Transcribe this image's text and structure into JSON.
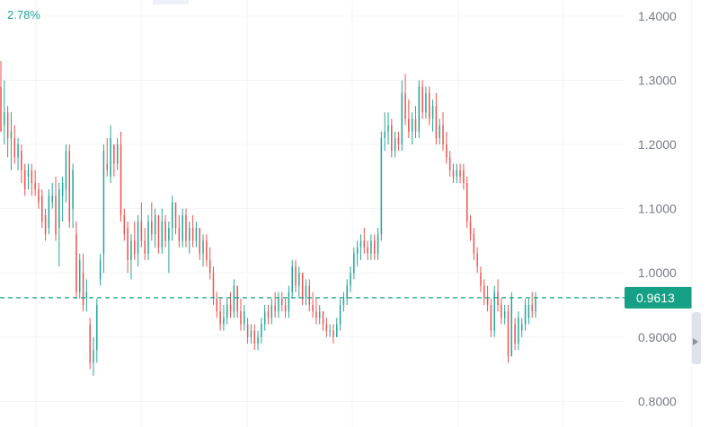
{
  "header": {
    "change_label": "2.78%"
  },
  "price_axis": {
    "ticks": [
      "1.4000",
      "1.3000",
      "1.2000",
      "1.1000",
      "1.0000",
      "0.9000",
      "0.8000"
    ]
  },
  "current_price": {
    "label": "0.9613",
    "value": 0.9613
  },
  "colors": {
    "up": "#26a69a",
    "down": "#ef5350",
    "tag_bg": "#16a085",
    "grid": "#f2f3f5",
    "axis_text": "#787b86"
  },
  "chart_data": {
    "type": "candlestick",
    "ylim": [
      0.76,
      1.425
    ],
    "yticks": [
      1.4,
      1.3,
      1.2,
      1.1,
      1.0,
      0.9,
      0.8
    ],
    "grid": true,
    "bars": [
      {
        "o": 1.29,
        "h": 1.33,
        "l": 1.22,
        "c": 1.22
      },
      {
        "o": 1.23,
        "h": 1.3,
        "l": 1.2,
        "c": 1.25
      },
      {
        "o": 1.25,
        "h": 1.26,
        "l": 1.18,
        "c": 1.21
      },
      {
        "o": 1.21,
        "h": 1.25,
        "l": 1.16,
        "c": 1.22
      },
      {
        "o": 1.21,
        "h": 1.23,
        "l": 1.17,
        "c": 1.18
      },
      {
        "o": 1.18,
        "h": 1.21,
        "l": 1.16,
        "c": 1.2
      },
      {
        "o": 1.19,
        "h": 1.2,
        "l": 1.14,
        "c": 1.16
      },
      {
        "o": 1.16,
        "h": 1.17,
        "l": 1.12,
        "c": 1.13
      },
      {
        "o": 1.15,
        "h": 1.17,
        "l": 1.13,
        "c": 1.16
      },
      {
        "o": 1.16,
        "h": 1.17,
        "l": 1.12,
        "c": 1.14
      },
      {
        "o": 1.14,
        "h": 1.16,
        "l": 1.12,
        "c": 1.13
      },
      {
        "o": 1.13,
        "h": 1.14,
        "l": 1.1,
        "c": 1.11
      },
      {
        "o": 1.12,
        "h": 1.13,
        "l": 1.07,
        "c": 1.08
      },
      {
        "o": 1.09,
        "h": 1.1,
        "l": 1.05,
        "c": 1.06
      },
      {
        "o": 1.07,
        "h": 1.13,
        "l": 1.06,
        "c": 1.12
      },
      {
        "o": 1.11,
        "h": 1.14,
        "l": 1.1,
        "c": 1.12
      },
      {
        "o": 1.12,
        "h": 1.15,
        "l": 1.05,
        "c": 1.06
      },
      {
        "o": 1.07,
        "h": 1.14,
        "l": 1.01,
        "c": 1.13
      },
      {
        "o": 1.12,
        "h": 1.15,
        "l": 1.08,
        "c": 1.14
      },
      {
        "o": 1.13,
        "h": 1.2,
        "l": 1.11,
        "c": 1.19
      },
      {
        "o": 1.19,
        "h": 1.2,
        "l": 1.07,
        "c": 1.08
      },
      {
        "o": 1.1,
        "h": 1.17,
        "l": 1.07,
        "c": 1.16
      },
      {
        "o": 1.06,
        "h": 1.08,
        "l": 0.96,
        "c": 0.97
      },
      {
        "o": 0.97,
        "h": 1.03,
        "l": 0.96,
        "c": 1.02
      },
      {
        "o": 1.0,
        "h": 1.03,
        "l": 0.94,
        "c": 0.95
      },
      {
        "o": 0.96,
        "h": 0.99,
        "l": 0.94,
        "c": 0.97
      },
      {
        "o": 0.92,
        "h": 0.93,
        "l": 0.85,
        "c": 0.86
      },
      {
        "o": 0.86,
        "h": 0.9,
        "l": 0.84,
        "c": 0.88
      },
      {
        "o": 0.88,
        "h": 0.96,
        "l": 0.86,
        "c": 0.95
      },
      {
        "o": 0.99,
        "h": 1.03,
        "l": 0.98,
        "c": 1.02
      },
      {
        "o": 1.03,
        "h": 1.2,
        "l": 1.0,
        "c": 1.19
      },
      {
        "o": 1.17,
        "h": 1.21,
        "l": 1.15,
        "c": 1.16
      },
      {
        "o": 1.15,
        "h": 1.23,
        "l": 1.14,
        "c": 1.21
      },
      {
        "o": 1.2,
        "h": 1.2,
        "l": 1.15,
        "c": 1.17
      },
      {
        "o": 1.17,
        "h": 1.21,
        "l": 1.16,
        "c": 1.2
      },
      {
        "o": 1.2,
        "h": 1.22,
        "l": 1.08,
        "c": 1.09
      },
      {
        "o": 1.09,
        "h": 1.1,
        "l": 1.05,
        "c": 1.06
      },
      {
        "o": 1.07,
        "h": 1.08,
        "l": 1.0,
        "c": 1.02
      },
      {
        "o": 1.02,
        "h": 1.06,
        "l": 0.99,
        "c": 1.05
      },
      {
        "o": 1.05,
        "h": 1.08,
        "l": 1.02,
        "c": 1.03
      },
      {
        "o": 1.03,
        "h": 1.09,
        "l": 1.01,
        "c": 1.08
      },
      {
        "o": 1.08,
        "h": 1.11,
        "l": 1.04,
        "c": 1.05
      },
      {
        "o": 1.05,
        "h": 1.07,
        "l": 1.02,
        "c": 1.03
      },
      {
        "o": 1.03,
        "h": 1.09,
        "l": 1.02,
        "c": 1.08
      },
      {
        "o": 1.08,
        "h": 1.11,
        "l": 1.05,
        "c": 1.06
      },
      {
        "o": 1.06,
        "h": 1.1,
        "l": 1.04,
        "c": 1.09
      },
      {
        "o": 1.09,
        "h": 1.09,
        "l": 1.03,
        "c": 1.04
      },
      {
        "o": 1.04,
        "h": 1.1,
        "l": 1.03,
        "c": 1.08
      },
      {
        "o": 1.08,
        "h": 1.09,
        "l": 1.04,
        "c": 1.05
      },
      {
        "o": 1.05,
        "h": 1.08,
        "l": 1.0,
        "c": 1.07
      },
      {
        "o": 1.07,
        "h": 1.12,
        "l": 1.05,
        "c": 1.11
      },
      {
        "o": 1.11,
        "h": 1.11,
        "l": 1.06,
        "c": 1.07
      },
      {
        "o": 1.07,
        "h": 1.09,
        "l": 1.04,
        "c": 1.05
      },
      {
        "o": 1.05,
        "h": 1.1,
        "l": 1.04,
        "c": 1.09
      },
      {
        "o": 1.09,
        "h": 1.1,
        "l": 1.04,
        "c": 1.05
      },
      {
        "o": 1.05,
        "h": 1.08,
        "l": 1.03,
        "c": 1.07
      },
      {
        "o": 1.07,
        "h": 1.09,
        "l": 1.04,
        "c": 1.05
      },
      {
        "o": 1.05,
        "h": 1.08,
        "l": 1.04,
        "c": 1.07
      },
      {
        "o": 1.07,
        "h": 1.07,
        "l": 1.02,
        "c": 1.03
      },
      {
        "o": 1.03,
        "h": 1.06,
        "l": 1.01,
        "c": 1.05
      },
      {
        "o": 1.05,
        "h": 1.06,
        "l": 1.01,
        "c": 1.02
      },
      {
        "o": 1.02,
        "h": 1.04,
        "l": 0.99,
        "c": 1.0
      },
      {
        "o": 1.0,
        "h": 1.01,
        "l": 0.95,
        "c": 0.96
      },
      {
        "o": 0.96,
        "h": 0.97,
        "l": 0.93,
        "c": 0.94
      },
      {
        "o": 0.94,
        "h": 0.96,
        "l": 0.91,
        "c": 0.92
      },
      {
        "o": 0.92,
        "h": 0.95,
        "l": 0.91,
        "c": 0.93
      },
      {
        "o": 0.93,
        "h": 0.96,
        "l": 0.92,
        "c": 0.95
      },
      {
        "o": 0.95,
        "h": 0.97,
        "l": 0.93,
        "c": 0.94
      },
      {
        "o": 0.94,
        "h": 0.99,
        "l": 0.93,
        "c": 0.98
      },
      {
        "o": 0.98,
        "h": 0.98,
        "l": 0.93,
        "c": 0.94
      },
      {
        "o": 0.94,
        "h": 0.96,
        "l": 0.91,
        "c": 0.92
      },
      {
        "o": 0.92,
        "h": 0.95,
        "l": 0.91,
        "c": 0.94
      },
      {
        "o": 0.92,
        "h": 0.93,
        "l": 0.89,
        "c": 0.9
      },
      {
        "o": 0.9,
        "h": 0.92,
        "l": 0.89,
        "c": 0.91
      },
      {
        "o": 0.91,
        "h": 0.92,
        "l": 0.88,
        "c": 0.89
      },
      {
        "o": 0.89,
        "h": 0.91,
        "l": 0.88,
        "c": 0.9
      },
      {
        "o": 0.9,
        "h": 0.93,
        "l": 0.89,
        "c": 0.92
      },
      {
        "o": 0.92,
        "h": 0.95,
        "l": 0.91,
        "c": 0.94
      },
      {
        "o": 0.94,
        "h": 0.95,
        "l": 0.92,
        "c": 0.93
      },
      {
        "o": 0.93,
        "h": 0.96,
        "l": 0.92,
        "c": 0.95
      },
      {
        "o": 0.95,
        "h": 0.97,
        "l": 0.93,
        "c": 0.94
      },
      {
        "o": 0.94,
        "h": 0.97,
        "l": 0.93,
        "c": 0.96
      },
      {
        "o": 0.96,
        "h": 0.97,
        "l": 0.94,
        "c": 0.95
      },
      {
        "o": 0.95,
        "h": 0.96,
        "l": 0.93,
        "c": 0.94
      },
      {
        "o": 0.94,
        "h": 0.98,
        "l": 0.93,
        "c": 0.97
      },
      {
        "o": 0.97,
        "h": 1.02,
        "l": 0.96,
        "c": 1.01
      },
      {
        "o": 1.01,
        "h": 1.02,
        "l": 0.97,
        "c": 0.98
      },
      {
        "o": 0.98,
        "h": 1.01,
        "l": 0.96,
        "c": 1.0
      },
      {
        "o": 1.0,
        "h": 1.0,
        "l": 0.95,
        "c": 0.96
      },
      {
        "o": 0.96,
        "h": 0.99,
        "l": 0.95,
        "c": 0.98
      },
      {
        "o": 0.98,
        "h": 0.99,
        "l": 0.94,
        "c": 0.95
      },
      {
        "o": 0.95,
        "h": 0.97,
        "l": 0.93,
        "c": 0.94
      },
      {
        "o": 0.94,
        "h": 0.96,
        "l": 0.92,
        "c": 0.93
      },
      {
        "o": 0.93,
        "h": 0.95,
        "l": 0.92,
        "c": 0.94
      },
      {
        "o": 0.94,
        "h": 0.94,
        "l": 0.91,
        "c": 0.92
      },
      {
        "o": 0.92,
        "h": 0.93,
        "l": 0.9,
        "c": 0.91
      },
      {
        "o": 0.91,
        "h": 0.92,
        "l": 0.9,
        "c": 0.91
      },
      {
        "o": 0.91,
        "h": 0.92,
        "l": 0.89,
        "c": 0.9
      },
      {
        "o": 0.9,
        "h": 0.93,
        "l": 0.9,
        "c": 0.92
      },
      {
        "o": 0.92,
        "h": 0.96,
        "l": 0.91,
        "c": 0.95
      },
      {
        "o": 0.95,
        "h": 0.97,
        "l": 0.94,
        "c": 0.96
      },
      {
        "o": 0.96,
        "h": 0.99,
        "l": 0.95,
        "c": 0.98
      },
      {
        "o": 0.98,
        "h": 1.01,
        "l": 0.97,
        "c": 1.0
      },
      {
        "o": 1.0,
        "h": 1.04,
        "l": 0.99,
        "c": 1.03
      },
      {
        "o": 1.03,
        "h": 1.05,
        "l": 1.01,
        "c": 1.04
      },
      {
        "o": 1.04,
        "h": 1.06,
        "l": 1.02,
        "c": 1.05
      },
      {
        "o": 1.05,
        "h": 1.07,
        "l": 1.03,
        "c": 1.04
      },
      {
        "o": 1.04,
        "h": 1.05,
        "l": 1.02,
        "c": 1.03
      },
      {
        "o": 1.03,
        "h": 1.06,
        "l": 1.02,
        "c": 1.05
      },
      {
        "o": 1.05,
        "h": 1.06,
        "l": 1.02,
        "c": 1.03
      },
      {
        "o": 1.03,
        "h": 1.07,
        "l": 1.02,
        "c": 1.06
      },
      {
        "o": 1.06,
        "h": 1.22,
        "l": 1.05,
        "c": 1.21
      },
      {
        "o": 1.21,
        "h": 1.25,
        "l": 1.19,
        "c": 1.22
      },
      {
        "o": 1.22,
        "h": 1.25,
        "l": 1.2,
        "c": 1.23
      },
      {
        "o": 1.23,
        "h": 1.24,
        "l": 1.18,
        "c": 1.19
      },
      {
        "o": 1.19,
        "h": 1.22,
        "l": 1.18,
        "c": 1.21
      },
      {
        "o": 1.21,
        "h": 1.22,
        "l": 1.19,
        "c": 1.2
      },
      {
        "o": 1.2,
        "h": 1.3,
        "l": 1.19,
        "c": 1.28
      },
      {
        "o": 1.28,
        "h": 1.31,
        "l": 1.23,
        "c": 1.24
      },
      {
        "o": 1.24,
        "h": 1.27,
        "l": 1.21,
        "c": 1.22
      },
      {
        "o": 1.22,
        "h": 1.25,
        "l": 1.2,
        "c": 1.24
      },
      {
        "o": 1.24,
        "h": 1.26,
        "l": 1.21,
        "c": 1.22
      },
      {
        "o": 1.22,
        "h": 1.3,
        "l": 1.21,
        "c": 1.29
      },
      {
        "o": 1.29,
        "h": 1.3,
        "l": 1.24,
        "c": 1.25
      },
      {
        "o": 1.25,
        "h": 1.29,
        "l": 1.24,
        "c": 1.28
      },
      {
        "o": 1.28,
        "h": 1.29,
        "l": 1.23,
        "c": 1.24
      },
      {
        "o": 1.24,
        "h": 1.27,
        "l": 1.22,
        "c": 1.26
      },
      {
        "o": 1.26,
        "h": 1.28,
        "l": 1.2,
        "c": 1.21
      },
      {
        "o": 1.21,
        "h": 1.24,
        "l": 1.2,
        "c": 1.23
      },
      {
        "o": 1.23,
        "h": 1.25,
        "l": 1.19,
        "c": 1.2
      },
      {
        "o": 1.2,
        "h": 1.22,
        "l": 1.17,
        "c": 1.18
      },
      {
        "o": 1.18,
        "h": 1.19,
        "l": 1.15,
        "c": 1.16
      },
      {
        "o": 1.16,
        "h": 1.17,
        "l": 1.14,
        "c": 1.15
      },
      {
        "o": 1.15,
        "h": 1.17,
        "l": 1.14,
        "c": 1.16
      },
      {
        "o": 1.16,
        "h": 1.17,
        "l": 1.14,
        "c": 1.15
      },
      {
        "o": 1.16,
        "h": 1.17,
        "l": 1.13,
        "c": 1.14
      },
      {
        "o": 1.14,
        "h": 1.15,
        "l": 1.07,
        "c": 1.08
      },
      {
        "o": 1.08,
        "h": 1.09,
        "l": 1.05,
        "c": 1.06
      },
      {
        "o": 1.06,
        "h": 1.07,
        "l": 1.02,
        "c": 1.03
      },
      {
        "o": 1.03,
        "h": 1.04,
        "l": 1.0,
        "c": 1.01
      },
      {
        "o": 1.0,
        "h": 1.01,
        "l": 0.97,
        "c": 0.98
      },
      {
        "o": 0.98,
        "h": 0.99,
        "l": 0.95,
        "c": 0.96
      },
      {
        "o": 0.96,
        "h": 0.98,
        "l": 0.94,
        "c": 0.95
      },
      {
        "o": 0.95,
        "h": 0.96,
        "l": 0.9,
        "c": 0.91
      },
      {
        "o": 0.91,
        "h": 0.98,
        "l": 0.9,
        "c": 0.97
      },
      {
        "o": 0.97,
        "h": 0.99,
        "l": 0.94,
        "c": 0.95
      },
      {
        "o": 0.95,
        "h": 0.96,
        "l": 0.92,
        "c": 0.93
      },
      {
        "o": 0.93,
        "h": 0.95,
        "l": 0.92,
        "c": 0.94
      },
      {
        "o": 0.94,
        "h": 0.95,
        "l": 0.86,
        "c": 0.87
      },
      {
        "o": 0.87,
        "h": 0.97,
        "l": 0.87,
        "c": 0.96
      },
      {
        "o": 0.92,
        "h": 0.93,
        "l": 0.88,
        "c": 0.89
      },
      {
        "o": 0.89,
        "h": 0.94,
        "l": 0.88,
        "c": 0.93
      },
      {
        "o": 0.91,
        "h": 0.93,
        "l": 0.9,
        "c": 0.92
      },
      {
        "o": 0.92,
        "h": 0.96,
        "l": 0.91,
        "c": 0.95
      },
      {
        "o": 0.93,
        "h": 0.96,
        "l": 0.92,
        "c": 0.95
      },
      {
        "o": 0.95,
        "h": 0.97,
        "l": 0.93,
        "c": 0.94
      },
      {
        "o": 0.94,
        "h": 0.97,
        "l": 0.93,
        "c": 0.96
      }
    ]
  }
}
